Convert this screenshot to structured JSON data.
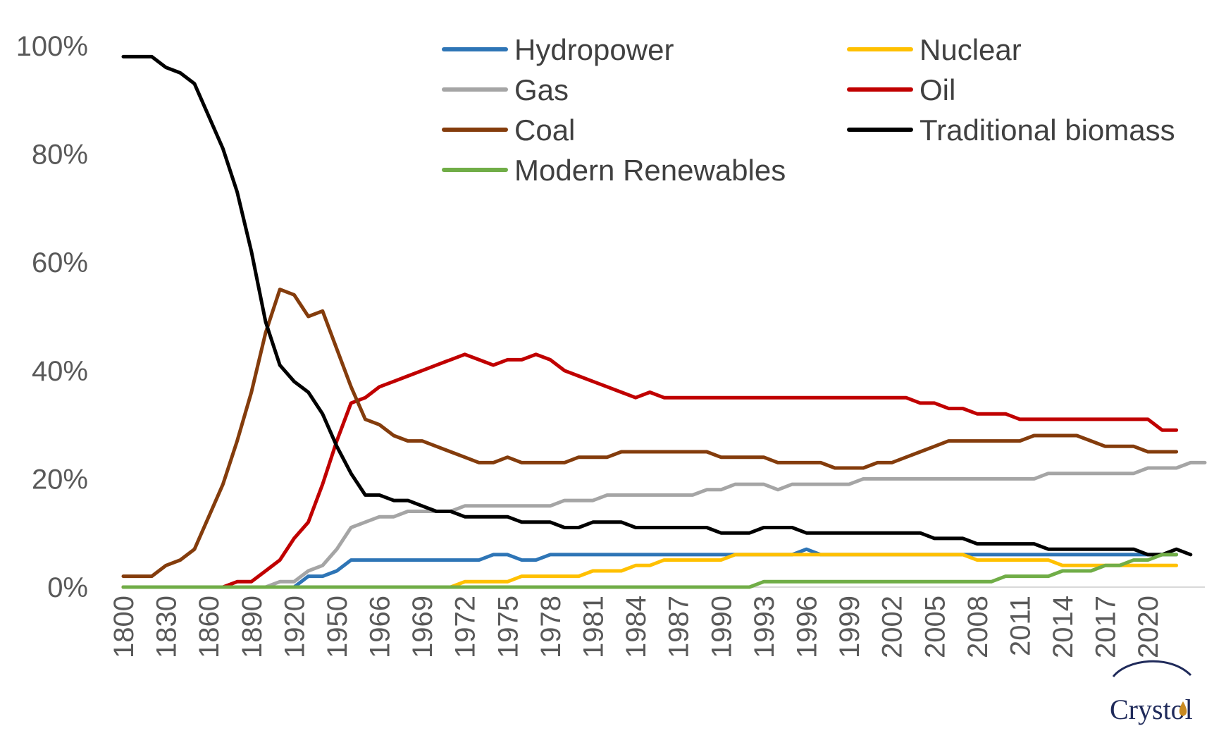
{
  "chart_data": {
    "type": "line",
    "title": "",
    "xlabel": "",
    "ylabel": "",
    "ylim": [
      0,
      100
    ],
    "y_ticks": [
      "0%",
      "20%",
      "40%",
      "60%",
      "80%",
      "100%"
    ],
    "x_tick_labels": [
      "1800",
      "1830",
      "1860",
      "1890",
      "1920",
      "1950",
      "1966",
      "1969",
      "1972",
      "1975",
      "1978",
      "1981",
      "1984",
      "1987",
      "1990",
      "1993",
      "1996",
      "1999",
      "2002",
      "2005",
      "2008",
      "2011",
      "2014",
      "2017",
      "2020"
    ],
    "x_tick_every": 3,
    "grid": false,
    "legend_placement": "top-right",
    "legend_entries": [
      "Hydropower",
      "Nuclear",
      "Gas",
      "Oil",
      "Coal",
      "Traditional biomass",
      "Modern Renewables"
    ],
    "series": [
      {
        "name": "Hydropower",
        "color": "#2e75b6",
        "values": [
          0,
          0,
          0,
          0,
          0,
          0,
          0,
          0,
          0,
          0,
          0,
          0,
          0,
          2,
          2,
          3,
          5,
          5,
          5,
          5,
          5,
          5,
          5,
          5,
          5,
          5,
          6,
          6,
          5,
          5,
          6,
          6,
          6,
          6,
          6,
          6,
          6,
          6,
          6,
          6,
          6,
          6,
          6,
          6,
          6,
          6,
          6,
          6,
          7,
          6,
          6,
          6,
          6,
          6,
          6,
          6,
          6,
          6,
          6,
          6,
          6,
          6,
          6,
          6,
          6,
          6,
          6,
          6,
          6,
          6,
          6,
          6,
          6,
          6,
          6
        ]
      },
      {
        "name": "Nuclear",
        "color": "#ffc000",
        "values": [
          0,
          0,
          0,
          0,
          0,
          0,
          0,
          0,
          0,
          0,
          0,
          0,
          0,
          0,
          0,
          0,
          0,
          0,
          0,
          0,
          0,
          0,
          0,
          0,
          1,
          1,
          1,
          1,
          2,
          2,
          2,
          2,
          2,
          3,
          3,
          3,
          4,
          4,
          5,
          5,
          5,
          5,
          5,
          6,
          6,
          6,
          6,
          6,
          6,
          6,
          6,
          6,
          6,
          6,
          6,
          6,
          6,
          6,
          6,
          6,
          5,
          5,
          5,
          5,
          5,
          5,
          4,
          4,
          4,
          4,
          4,
          4,
          4,
          4,
          4
        ]
      },
      {
        "name": "Gas",
        "color": "#a5a5a5",
        "values": [
          0,
          0,
          0,
          0,
          0,
          0,
          0,
          0,
          0,
          0,
          0,
          1,
          1,
          3,
          4,
          7,
          11,
          12,
          13,
          13,
          14,
          14,
          14,
          14,
          15,
          15,
          15,
          15,
          15,
          15,
          15,
          16,
          16,
          16,
          17,
          17,
          17,
          17,
          17,
          17,
          17,
          18,
          18,
          19,
          19,
          19,
          18,
          19,
          19,
          19,
          19,
          19,
          20,
          20,
          20,
          20,
          20,
          20,
          20,
          20,
          20,
          20,
          20,
          20,
          20,
          21,
          21,
          21,
          21,
          21,
          21,
          21,
          22,
          22,
          22,
          23,
          23
        ]
      },
      {
        "name": "Oil",
        "color": "#c00000",
        "values": [
          0,
          0,
          0,
          0,
          0,
          0,
          0,
          0,
          1,
          1,
          3,
          5,
          9,
          12,
          19,
          27,
          34,
          35,
          37,
          38,
          39,
          40,
          41,
          42,
          43,
          42,
          41,
          42,
          42,
          43,
          42,
          40,
          39,
          38,
          37,
          36,
          35,
          36,
          35,
          35,
          35,
          35,
          35,
          35,
          35,
          35,
          35,
          35,
          35,
          35,
          35,
          35,
          35,
          35,
          35,
          35,
          34,
          34,
          33,
          33,
          32,
          32,
          32,
          31,
          31,
          31,
          31,
          31,
          31,
          31,
          31,
          31,
          31,
          29,
          29
        ]
      },
      {
        "name": "Coal",
        "color": "#843c0c",
        "values": [
          2,
          2,
          2,
          4,
          5,
          7,
          13,
          19,
          27,
          36,
          47,
          55,
          54,
          50,
          51,
          44,
          37,
          31,
          30,
          28,
          27,
          27,
          26,
          25,
          24,
          23,
          23,
          24,
          23,
          23,
          23,
          23,
          24,
          24,
          24,
          25,
          25,
          25,
          25,
          25,
          25,
          25,
          24,
          24,
          24,
          24,
          23,
          23,
          23,
          23,
          22,
          22,
          22,
          23,
          23,
          24,
          25,
          26,
          27,
          27,
          27,
          27,
          27,
          27,
          28,
          28,
          28,
          28,
          27,
          26,
          26,
          26,
          25,
          25,
          25
        ]
      },
      {
        "name": "Traditional biomass",
        "color": "#000000",
        "values": [
          98,
          98,
          98,
          96,
          95,
          93,
          87,
          81,
          73,
          62,
          49,
          41,
          38,
          36,
          32,
          26,
          21,
          17,
          17,
          16,
          16,
          15,
          14,
          14,
          13,
          13,
          13,
          13,
          12,
          12,
          12,
          11,
          11,
          12,
          12,
          12,
          11,
          11,
          11,
          11,
          11,
          11,
          10,
          10,
          10,
          11,
          11,
          11,
          10,
          10,
          10,
          10,
          10,
          10,
          10,
          10,
          10,
          9,
          9,
          9,
          8,
          8,
          8,
          8,
          8,
          7,
          7,
          7,
          7,
          7,
          7,
          7,
          6,
          6,
          7,
          6
        ]
      },
      {
        "name": "Modern Renewables",
        "color": "#70ad47",
        "values": [
          0,
          0,
          0,
          0,
          0,
          0,
          0,
          0,
          0,
          0,
          0,
          0,
          0,
          0,
          0,
          0,
          0,
          0,
          0,
          0,
          0,
          0,
          0,
          0,
          0,
          0,
          0,
          0,
          0,
          0,
          0,
          0,
          0,
          0,
          0,
          0,
          0,
          0,
          0,
          0,
          0,
          0,
          0,
          0,
          0,
          1,
          1,
          1,
          1,
          1,
          1,
          1,
          1,
          1,
          1,
          1,
          1,
          1,
          1,
          1,
          1,
          1,
          2,
          2,
          2,
          2,
          3,
          3,
          3,
          4,
          4,
          5,
          5,
          6,
          6
        ]
      }
    ]
  },
  "logo": {
    "text": "Crystol"
  }
}
